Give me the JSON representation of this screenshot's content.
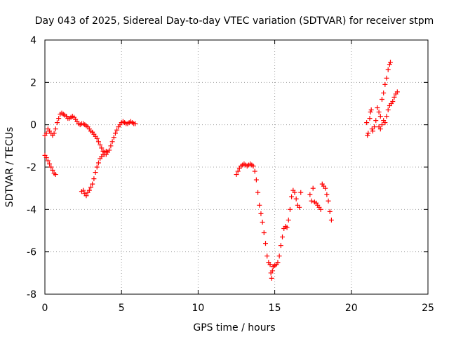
{
  "chart_data": {
    "type": "scatter",
    "title": "Day 043 of 2025, Sidereal Day-to-day VTEC variation (SDTVAR) for receiver stpm",
    "xlabel": "GPS time / hours",
    "ylabel": "SDTVAR / TECUs",
    "xlim": [
      0,
      25
    ],
    "ylim": [
      -8,
      4
    ],
    "xticks": [
      "0",
      "5",
      "10",
      "15",
      "20",
      "25"
    ],
    "yticks": [
      "-8",
      "-6",
      "-4",
      "-2",
      "0",
      "2",
      "4"
    ],
    "grid": true,
    "marker": "+",
    "color": "#ff0000",
    "series": [
      {
        "points": [
          [
            0.0,
            -0.5
          ],
          [
            0.1,
            -0.4
          ],
          [
            0.2,
            -0.2
          ],
          [
            0.3,
            -0.3
          ],
          [
            0.4,
            -0.4
          ],
          [
            0.5,
            -0.5
          ],
          [
            0.6,
            -0.4
          ],
          [
            0.7,
            -0.2
          ],
          [
            0.8,
            0.1
          ],
          [
            0.9,
            0.3
          ],
          [
            1.0,
            0.5
          ],
          [
            1.1,
            0.55
          ],
          [
            1.2,
            0.5
          ],
          [
            1.3,
            0.45
          ],
          [
            1.4,
            0.4
          ],
          [
            1.5,
            0.3
          ],
          [
            1.6,
            0.3
          ],
          [
            1.7,
            0.35
          ],
          [
            1.8,
            0.4
          ],
          [
            1.9,
            0.35
          ],
          [
            2.0,
            0.25
          ],
          [
            2.1,
            0.15
          ],
          [
            2.2,
            0.05
          ],
          [
            2.3,
            0.0
          ],
          [
            2.4,
            0.05
          ],
          [
            2.5,
            0.05
          ],
          [
            2.6,
            0.0
          ],
          [
            2.7,
            -0.05
          ],
          [
            2.8,
            -0.1
          ],
          [
            2.9,
            -0.2
          ],
          [
            3.0,
            -0.3
          ],
          [
            3.1,
            -0.35
          ],
          [
            3.2,
            -0.45
          ],
          [
            3.3,
            -0.55
          ],
          [
            3.4,
            -0.65
          ],
          [
            3.5,
            -0.8
          ],
          [
            3.6,
            -0.95
          ],
          [
            3.7,
            -1.1
          ],
          [
            3.8,
            -1.25
          ],
          [
            3.9,
            -1.4
          ],
          [
            4.0,
            -1.4
          ],
          [
            4.1,
            -1.3
          ],
          [
            4.2,
            -1.2
          ],
          [
            4.3,
            -1.0
          ],
          [
            4.4,
            -0.8
          ],
          [
            4.5,
            -0.6
          ],
          [
            4.6,
            -0.4
          ],
          [
            4.7,
            -0.25
          ],
          [
            4.8,
            -0.1
          ],
          [
            4.9,
            0.0
          ],
          [
            5.0,
            0.1
          ],
          [
            5.1,
            0.15
          ],
          [
            5.2,
            0.1
          ],
          [
            5.3,
            0.05
          ],
          [
            5.4,
            0.05
          ],
          [
            5.5,
            0.1
          ],
          [
            5.6,
            0.15
          ],
          [
            5.7,
            0.1
          ],
          [
            5.8,
            0.05
          ],
          [
            5.9,
            0.05
          ]
        ]
      },
      {
        "points": [
          [
            0.0,
            -1.45
          ],
          [
            0.1,
            -1.55
          ],
          [
            0.2,
            -1.7
          ],
          [
            0.3,
            -1.85
          ],
          [
            0.4,
            -2.0
          ],
          [
            0.5,
            -2.15
          ],
          [
            0.6,
            -2.3
          ],
          [
            0.7,
            -2.35
          ]
        ]
      },
      {
        "points": [
          [
            2.4,
            -3.15
          ],
          [
            2.5,
            -3.1
          ],
          [
            2.6,
            -3.25
          ],
          [
            2.7,
            -3.35
          ],
          [
            2.8,
            -3.2
          ],
          [
            2.9,
            -3.1
          ],
          [
            3.0,
            -2.95
          ],
          [
            3.1,
            -2.8
          ],
          [
            3.2,
            -2.55
          ],
          [
            3.3,
            -2.25
          ],
          [
            3.4,
            -2.0
          ],
          [
            3.5,
            -1.8
          ],
          [
            3.6,
            -1.6
          ],
          [
            3.7,
            -1.5
          ],
          [
            3.8,
            -1.4
          ],
          [
            3.9,
            -1.3
          ],
          [
            4.0,
            -1.25
          ]
        ]
      },
      {
        "points": [
          [
            12.5,
            -2.35
          ],
          [
            12.6,
            -2.2
          ],
          [
            12.7,
            -2.05
          ],
          [
            12.8,
            -1.95
          ],
          [
            12.9,
            -1.9
          ],
          [
            13.0,
            -1.85
          ],
          [
            13.1,
            -1.9
          ],
          [
            13.2,
            -1.95
          ],
          [
            13.3,
            -1.9
          ],
          [
            13.4,
            -1.85
          ],
          [
            13.5,
            -1.9
          ],
          [
            13.6,
            -1.95
          ],
          [
            13.7,
            -2.2
          ],
          [
            13.8,
            -2.6
          ],
          [
            13.9,
            -3.2
          ],
          [
            14.0,
            -3.8
          ],
          [
            14.1,
            -4.2
          ],
          [
            14.2,
            -4.6
          ],
          [
            14.3,
            -5.1
          ],
          [
            14.4,
            -5.6
          ],
          [
            14.5,
            -6.2
          ],
          [
            14.6,
            -6.5
          ],
          [
            14.7,
            -6.6
          ],
          [
            14.75,
            -7.0
          ],
          [
            14.8,
            -7.25
          ],
          [
            14.85,
            -6.9
          ],
          [
            14.9,
            -6.7
          ],
          [
            15.0,
            -6.65
          ],
          [
            15.1,
            -6.6
          ],
          [
            15.2,
            -6.5
          ],
          [
            15.3,
            -6.2
          ],
          [
            15.4,
            -5.7
          ],
          [
            15.5,
            -5.3
          ],
          [
            15.6,
            -4.9
          ],
          [
            15.7,
            -4.8
          ],
          [
            15.8,
            -4.85
          ],
          [
            15.9,
            -4.5
          ],
          [
            16.0,
            -4.0
          ],
          [
            16.1,
            -3.4
          ],
          [
            16.2,
            -3.1
          ],
          [
            16.3,
            -3.2
          ],
          [
            16.4,
            -3.5
          ],
          [
            16.5,
            -3.8
          ],
          [
            16.6,
            -3.9
          ],
          [
            16.7,
            -3.2
          ],
          [
            17.3,
            -3.3
          ],
          [
            17.4,
            -3.6
          ],
          [
            17.5,
            -3.0
          ],
          [
            17.6,
            -3.65
          ],
          [
            17.7,
            -3.7
          ],
          [
            17.8,
            -3.8
          ],
          [
            17.9,
            -3.9
          ],
          [
            18.0,
            -4.0
          ],
          [
            18.1,
            -2.8
          ],
          [
            18.2,
            -2.9
          ],
          [
            18.3,
            -3.0
          ],
          [
            18.4,
            -3.3
          ],
          [
            18.5,
            -3.6
          ],
          [
            18.6,
            -4.1
          ],
          [
            18.7,
            -4.5
          ]
        ]
      },
      {
        "points": [
          [
            21.0,
            0.1
          ],
          [
            21.05,
            -0.5
          ],
          [
            21.1,
            -0.4
          ],
          [
            21.2,
            0.3
          ],
          [
            21.25,
            0.6
          ],
          [
            21.3,
            0.7
          ],
          [
            21.35,
            -0.2
          ],
          [
            21.4,
            -0.3
          ],
          [
            21.5,
            -0.1
          ],
          [
            21.6,
            0.2
          ],
          [
            21.7,
            0.8
          ],
          [
            21.8,
            0.6
          ],
          [
            21.9,
            0.4
          ],
          [
            22.0,
            1.2
          ],
          [
            22.1,
            1.5
          ],
          [
            22.2,
            1.9
          ],
          [
            22.3,
            2.2
          ],
          [
            22.4,
            2.6
          ],
          [
            22.5,
            2.85
          ],
          [
            22.55,
            2.95
          ],
          [
            21.8,
            -0.1
          ],
          [
            21.9,
            -0.2
          ],
          [
            22.0,
            0.0
          ],
          [
            22.1,
            0.2
          ],
          [
            22.2,
            0.1
          ],
          [
            22.3,
            0.4
          ],
          [
            22.4,
            0.7
          ],
          [
            22.5,
            0.9
          ],
          [
            22.6,
            1.0
          ],
          [
            22.7,
            1.1
          ],
          [
            22.8,
            1.3
          ],
          [
            22.9,
            1.45
          ],
          [
            23.0,
            1.55
          ]
        ]
      }
    ]
  }
}
